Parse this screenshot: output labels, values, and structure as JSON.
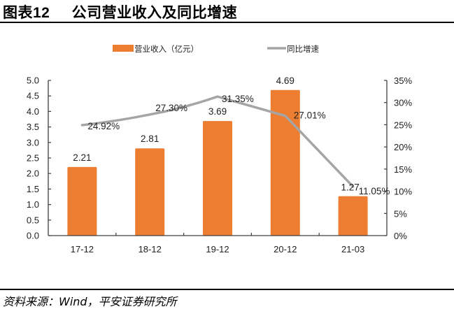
{
  "header": {
    "figure_label": "图表12",
    "title": "公司营业收入及同比增速"
  },
  "footer": {
    "source": "资料来源：Wind，平安证券研究所"
  },
  "colors": {
    "bar": "#ED7D31",
    "line": "#A5A5A5",
    "axis": "#404040"
  },
  "legend": {
    "bar_label": "营业收入（亿元）",
    "line_label": "同比增速"
  },
  "chart_data": {
    "type": "bar+line",
    "title": "公司营业收入及同比增速",
    "categories": [
      "17-12",
      "18-12",
      "19-12",
      "20-12",
      "21-03"
    ],
    "series": [
      {
        "name": "营业收入（亿元）",
        "type": "bar",
        "axis": "left",
        "values": [
          2.21,
          2.81,
          3.69,
          4.69,
          1.27
        ],
        "labels": [
          "2.21",
          "2.81",
          "3.69",
          "4.69",
          "1.27"
        ]
      },
      {
        "name": "同比增速",
        "type": "line",
        "axis": "right",
        "values": [
          24.92,
          27.3,
          31.35,
          27.01,
          11.05
        ],
        "labels": [
          "24.92%",
          "27.30%",
          "31.35%",
          "27.01%",
          "11.05%"
        ]
      }
    ],
    "xlabel": "",
    "ylabel": "",
    "ylim": [
      0,
      5.0
    ],
    "y_ticks": [
      "0.0",
      "0.5",
      "1.0",
      "1.5",
      "2.0",
      "2.5",
      "3.0",
      "3.5",
      "4.0",
      "4.5",
      "5.0"
    ],
    "y2lim": [
      0,
      35
    ],
    "y2_ticks": [
      "0%",
      "5%",
      "10%",
      "15%",
      "20%",
      "25%",
      "30%",
      "35%"
    ],
    "grid": false,
    "legend_position": "top"
  }
}
